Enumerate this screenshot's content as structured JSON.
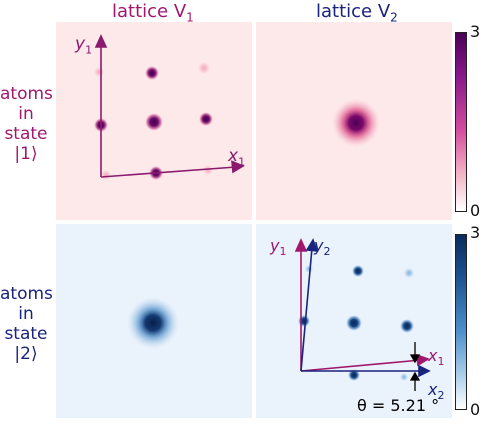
{
  "columns": [
    {
      "label": "lattice V",
      "sub": "1"
    },
    {
      "label": "lattice V",
      "sub": "2"
    }
  ],
  "rows": [
    {
      "lines": [
        "atoms",
        "in",
        "state",
        "|1⟩"
      ]
    },
    {
      "lines": [
        "atoms",
        "in",
        "state",
        "|2⟩"
      ]
    }
  ],
  "colorbars": [
    {
      "max": "3",
      "min": "0"
    },
    {
      "max": "3",
      "min": "0"
    }
  ],
  "axes": {
    "panel_tl": {
      "x": "x",
      "x_sub": "1",
      "y": "y",
      "y_sub": "1"
    },
    "panel_br": {
      "x1": "x",
      "x1_sub": "1",
      "y1": "y",
      "y1_sub": "1",
      "x2": "x",
      "x2_sub": "2",
      "y2": "y",
      "y2_sub": "2"
    }
  },
  "angle_label": "θ = 5.21 °",
  "colors": {
    "state1": "#a0186e",
    "state2": "#1a237e",
    "pink_bg": "#fde8ea",
    "blue_bg": "#eaf2fb"
  }
}
